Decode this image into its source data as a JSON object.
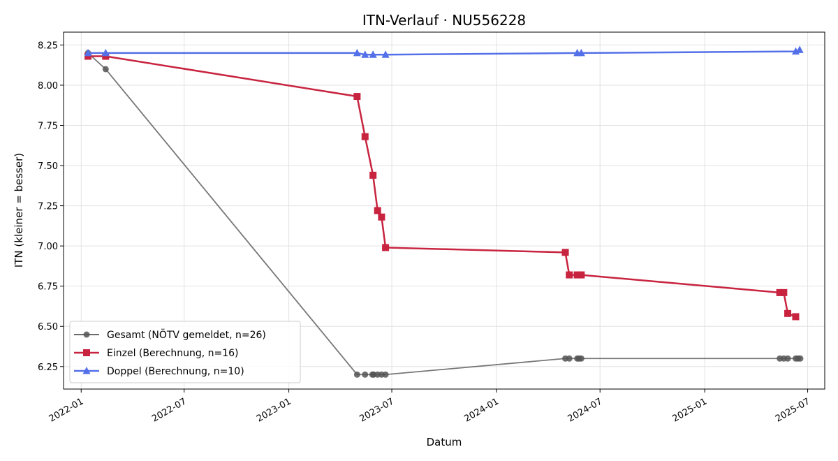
{
  "chart_data": {
    "type": "line",
    "title": "ITN-Verlauf · NU556228",
    "xlabel": "Datum",
    "ylabel": "ITN  (kleiner = besser)",
    "x_type": "date",
    "xlim": [
      "2021-12-01",
      "2025-07-31"
    ],
    "ylim": [
      6.11,
      8.33
    ],
    "x_ticks": [
      "2022-01",
      "2022-07",
      "2023-01",
      "2023-07",
      "2024-01",
      "2024-07",
      "2025-01",
      "2025-07"
    ],
    "x_tick_dates": [
      "2022-01-01",
      "2022-07-01",
      "2023-01-01",
      "2023-07-01",
      "2024-01-01",
      "2024-07-01",
      "2025-01-01",
      "2025-07-01"
    ],
    "y_ticks": [
      6.25,
      6.5,
      6.75,
      7.0,
      7.25,
      7.5,
      7.75,
      8.0,
      8.25
    ],
    "y_tick_labels": [
      "6.25",
      "6.50",
      "6.75",
      "7.00",
      "7.25",
      "7.50",
      "7.75",
      "8.00",
      "8.25"
    ],
    "grid": true,
    "legend_position": "lower-left",
    "series": [
      {
        "name": "Gesamt (NÖTV gemeldet, n=26)",
        "color": "#555555",
        "marker": "circle",
        "x": [
          "2022-01-13",
          "2022-02-13",
          "2023-05-01",
          "2023-05-15",
          "2023-05-28",
          "2023-05-30",
          "2023-06-06",
          "2023-06-13",
          "2023-06-20",
          "2024-05-01",
          "2024-05-08",
          "2024-05-22",
          "2024-05-25",
          "2024-05-29",
          "2025-05-13",
          "2025-05-20",
          "2025-05-27",
          "2025-06-10",
          "2025-06-14",
          "2025-06-18"
        ],
        "y": [
          8.2,
          8.1,
          6.2,
          6.2,
          6.2,
          6.2,
          6.2,
          6.2,
          6.2,
          6.3,
          6.3,
          6.3,
          6.3,
          6.3,
          6.3,
          6.3,
          6.3,
          6.3,
          6.3,
          6.3
        ]
      },
      {
        "name": "Einzel (Berechnung, n=16)",
        "color": "#c8233f",
        "marker": "square",
        "x": [
          "2022-01-13",
          "2022-02-13",
          "2023-05-01",
          "2023-05-15",
          "2023-05-29",
          "2023-06-06",
          "2023-06-13",
          "2023-06-20",
          "2024-05-01",
          "2024-05-08",
          "2024-05-22",
          "2024-05-29",
          "2025-05-13",
          "2025-05-20",
          "2025-05-27",
          "2025-06-10"
        ],
        "y": [
          8.18,
          8.18,
          7.93,
          7.68,
          7.44,
          7.22,
          7.18,
          6.99,
          6.96,
          6.82,
          6.82,
          6.82,
          6.71,
          6.71,
          6.58,
          6.56
        ]
      },
      {
        "name": "Doppel (Berechnung, n=10)",
        "color": "#5470e8",
        "marker": "triangle",
        "x": [
          "2022-01-13",
          "2022-02-13",
          "2023-05-01",
          "2023-05-15",
          "2023-05-29",
          "2023-06-20",
          "2024-05-22",
          "2024-05-29",
          "2025-06-10",
          "2025-06-17"
        ],
        "y": [
          8.2,
          8.2,
          8.2,
          8.19,
          8.19,
          8.19,
          8.2,
          8.2,
          8.21,
          8.22
        ]
      }
    ]
  }
}
